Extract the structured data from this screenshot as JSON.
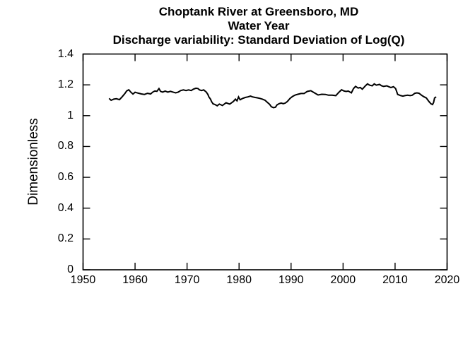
{
  "window": {
    "background": "#ffffff",
    "foreground": "#000000"
  },
  "chart_data": {
    "type": "line",
    "title_lines": [
      "Choptank River at Greensboro, MD",
      "Water Year",
      "Discharge variability: Standard Deviation of Log(Q)"
    ],
    "ylabel": "Dimensionless",
    "xlabel": "",
    "xlim": [
      1950,
      2020
    ],
    "ylim": [
      0,
      1.4
    ],
    "x_tick_values": [
      1950,
      1960,
      1970,
      1980,
      1990,
      2000,
      2010,
      2020
    ],
    "x_tick_labels": [
      "1950",
      "1960",
      "1970",
      "1980",
      "1990",
      "2000",
      "2010",
      "2020"
    ],
    "y_tick_values": [
      0,
      0.2,
      0.4,
      0.6,
      0.8,
      1.0,
      1.2,
      1.4
    ],
    "y_tick_labels": [
      "0",
      "0.2",
      "0.4",
      "0.6",
      "0.8",
      "1",
      "1.2",
      "1.4"
    ],
    "grid": false,
    "legend": null,
    "box": true,
    "ticks_inward_all_sides": true,
    "line_color": "#000000",
    "series": [
      {
        "name": "Standard Deviation of Log(Q)",
        "points": [
          [
            1955.0,
            1.112
          ],
          [
            1955.4,
            1.1
          ],
          [
            1955.9,
            1.107
          ],
          [
            1956.4,
            1.11
          ],
          [
            1957.0,
            1.104
          ],
          [
            1957.5,
            1.122
          ],
          [
            1958.0,
            1.142
          ],
          [
            1958.4,
            1.161
          ],
          [
            1958.8,
            1.168
          ],
          [
            1959.2,
            1.152
          ],
          [
            1959.6,
            1.14
          ],
          [
            1960.0,
            1.152
          ],
          [
            1960.6,
            1.146
          ],
          [
            1961.2,
            1.141
          ],
          [
            1961.8,
            1.138
          ],
          [
            1962.4,
            1.145
          ],
          [
            1963.0,
            1.141
          ],
          [
            1963.4,
            1.153
          ],
          [
            1963.8,
            1.16
          ],
          [
            1964.2,
            1.158
          ],
          [
            1964.6,
            1.176
          ],
          [
            1964.9,
            1.158
          ],
          [
            1965.3,
            1.153
          ],
          [
            1965.8,
            1.16
          ],
          [
            1966.3,
            1.153
          ],
          [
            1966.8,
            1.158
          ],
          [
            1967.3,
            1.153
          ],
          [
            1967.8,
            1.148
          ],
          [
            1968.3,
            1.153
          ],
          [
            1968.8,
            1.163
          ],
          [
            1969.3,
            1.167
          ],
          [
            1969.8,
            1.163
          ],
          [
            1970.3,
            1.167
          ],
          [
            1970.8,
            1.163
          ],
          [
            1971.2,
            1.172
          ],
          [
            1971.7,
            1.178
          ],
          [
            1972.1,
            1.176
          ],
          [
            1972.4,
            1.167
          ],
          [
            1972.8,
            1.163
          ],
          [
            1973.2,
            1.167
          ],
          [
            1973.7,
            1.153
          ],
          [
            1974.0,
            1.138
          ],
          [
            1974.2,
            1.122
          ],
          [
            1974.5,
            1.107
          ],
          [
            1974.7,
            1.092
          ],
          [
            1975.0,
            1.077
          ],
          [
            1975.4,
            1.072
          ],
          [
            1975.8,
            1.064
          ],
          [
            1976.2,
            1.075
          ],
          [
            1976.8,
            1.066
          ],
          [
            1977.5,
            1.084
          ],
          [
            1978.2,
            1.075
          ],
          [
            1978.9,
            1.092
          ],
          [
            1979.3,
            1.107
          ],
          [
            1979.6,
            1.096
          ],
          [
            1979.9,
            1.122
          ],
          [
            1980.2,
            1.103
          ],
          [
            1980.7,
            1.112
          ],
          [
            1981.2,
            1.118
          ],
          [
            1981.7,
            1.122
          ],
          [
            1982.2,
            1.127
          ],
          [
            1982.6,
            1.122
          ],
          [
            1983.1,
            1.118
          ],
          [
            1983.5,
            1.116
          ],
          [
            1984.0,
            1.112
          ],
          [
            1984.5,
            1.107
          ],
          [
            1985.0,
            1.1
          ],
          [
            1985.4,
            1.088
          ],
          [
            1985.9,
            1.073
          ],
          [
            1986.2,
            1.058
          ],
          [
            1986.6,
            1.052
          ],
          [
            1987.0,
            1.055
          ],
          [
            1987.3,
            1.07
          ],
          [
            1987.7,
            1.078
          ],
          [
            1988.1,
            1.082
          ],
          [
            1988.5,
            1.078
          ],
          [
            1988.9,
            1.082
          ],
          [
            1989.3,
            1.092
          ],
          [
            1989.8,
            1.112
          ],
          [
            1990.3,
            1.125
          ],
          [
            1990.8,
            1.134
          ],
          [
            1991.3,
            1.139
          ],
          [
            1991.9,
            1.144
          ],
          [
            1992.5,
            1.144
          ],
          [
            1993.1,
            1.157
          ],
          [
            1993.8,
            1.162
          ],
          [
            1994.5,
            1.148
          ],
          [
            1995.2,
            1.134
          ],
          [
            1995.9,
            1.139
          ],
          [
            1996.6,
            1.138
          ],
          [
            1997.2,
            1.133
          ],
          [
            1997.9,
            1.133
          ],
          [
            1998.6,
            1.13
          ],
          [
            1999.2,
            1.152
          ],
          [
            1999.7,
            1.168
          ],
          [
            2000.2,
            1.16
          ],
          [
            2000.6,
            1.157
          ],
          [
            2001.0,
            1.16
          ],
          [
            2001.6,
            1.148
          ],
          [
            2002.0,
            1.176
          ],
          [
            2002.4,
            1.19
          ],
          [
            2002.9,
            1.179
          ],
          [
            2003.3,
            1.183
          ],
          [
            2003.7,
            1.172
          ],
          [
            2004.3,
            1.194
          ],
          [
            2004.7,
            1.206
          ],
          [
            2005.1,
            1.198
          ],
          [
            2005.6,
            1.194
          ],
          [
            2006.0,
            1.206
          ],
          [
            2006.4,
            1.198
          ],
          [
            2007.0,
            1.203
          ],
          [
            2007.4,
            1.194
          ],
          [
            2007.8,
            1.19
          ],
          [
            2008.4,
            1.194
          ],
          [
            2008.8,
            1.188
          ],
          [
            2009.2,
            1.183
          ],
          [
            2009.7,
            1.188
          ],
          [
            2010.1,
            1.176
          ],
          [
            2010.5,
            1.138
          ],
          [
            2011.1,
            1.13
          ],
          [
            2011.5,
            1.127
          ],
          [
            2011.9,
            1.13
          ],
          [
            2012.4,
            1.133
          ],
          [
            2012.9,
            1.13
          ],
          [
            2013.3,
            1.133
          ],
          [
            2013.8,
            1.145
          ],
          [
            2014.2,
            1.148
          ],
          [
            2014.6,
            1.145
          ],
          [
            2015.2,
            1.13
          ],
          [
            2015.6,
            1.122
          ],
          [
            2016.0,
            1.115
          ],
          [
            2016.5,
            1.092
          ],
          [
            2016.9,
            1.077
          ],
          [
            2017.2,
            1.072
          ],
          [
            2017.4,
            1.085
          ],
          [
            2017.6,
            1.115
          ],
          [
            2017.9,
            1.122
          ]
        ]
      }
    ]
  }
}
